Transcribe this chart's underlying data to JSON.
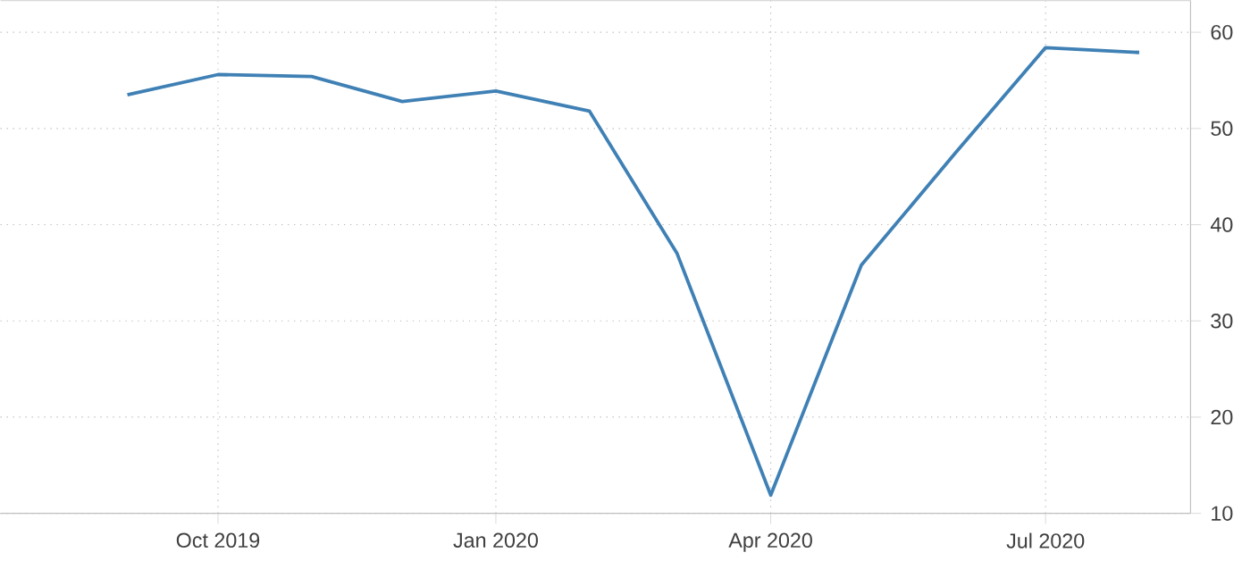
{
  "chart_data": {
    "type": "line",
    "x": [
      "2019-09-01",
      "2019-10-01",
      "2019-11-01",
      "2019-12-01",
      "2020-01-01",
      "2020-02-01",
      "2020-03-01",
      "2020-04-01",
      "2020-05-01",
      "2020-06-01",
      "2020-07-01",
      "2020-08-01"
    ],
    "series": [
      {
        "color": "#3f80b5",
        "values": [
          53.5,
          55.6,
          55.4,
          52.8,
          53.9,
          51.8,
          37,
          11.9,
          35.8,
          47.4,
          58.4,
          57.9
        ]
      }
    ],
    "xlim": [
      "2019-07-21",
      "2020-08-18"
    ],
    "ylim": [
      10,
      63.3
    ],
    "xticks": [
      {
        "value": "2019-10-01",
        "label": "Oct 2019"
      },
      {
        "value": "2020-01-01",
        "label": "Jan 2020"
      },
      {
        "value": "2020-04-01",
        "label": "Apr 2020"
      },
      {
        "value": "2020-07-01",
        "label": "Jul 2020"
      }
    ],
    "yticks": [
      10,
      20,
      30,
      40,
      50,
      60
    ],
    "grid": true,
    "marker": "none",
    "line_style": "solid"
  }
}
